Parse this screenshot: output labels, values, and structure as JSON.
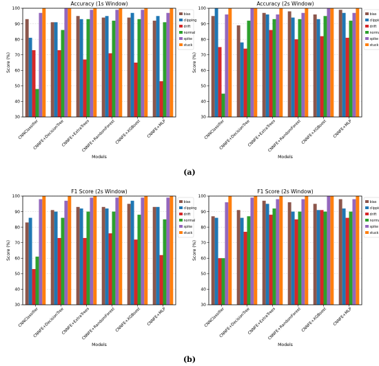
{
  "figure": {
    "captions": [
      "(a)",
      "(b)"
    ]
  },
  "colors": {
    "bias": "#8c564b",
    "clipping": "#1f77b4",
    "drift": "#d62728",
    "normal": "#2ca02c",
    "spike": "#9467bd",
    "stuck": "#ff7f0e"
  },
  "chart_data": [
    {
      "type": "bar",
      "title": "Accuracy (1s Window)",
      "xlabel": "Models",
      "ylabel": "Score (%)",
      "ylim": [
        30,
        100
      ],
      "yticks": [
        30,
        40,
        50,
        60,
        70,
        80,
        90,
        100
      ],
      "grid": true,
      "legend": "top-right (outside)",
      "categories": [
        "CNNClassifier",
        "CNNFE+DecisionTree",
        "CNNFE+ExtraTrees",
        "CNNFE+RandomForest",
        "CNNFE+XGBoost",
        "CNNFE+MLP"
      ],
      "series": [
        {
          "name": "bias",
          "values": [
            93,
            91,
            95,
            94,
            94,
            92
          ]
        },
        {
          "name": "clipping",
          "values": [
            81,
            91,
            93,
            95,
            97,
            95
          ]
        },
        {
          "name": "drift",
          "values": [
            73,
            73,
            67,
            71,
            65,
            53
          ]
        },
        {
          "name": "normal",
          "values": [
            48,
            86,
            93,
            92,
            93,
            91
          ]
        },
        {
          "name": "spike",
          "values": [
            97,
            100,
            99,
            99,
            99,
            97
          ]
        },
        {
          "name": "stuck",
          "values": [
            100,
            100,
            100,
            100,
            100,
            100
          ]
        }
      ]
    },
    {
      "type": "bar",
      "title": "Accuracy (2s Window)",
      "xlabel": "Models",
      "ylabel": "Score (%)",
      "ylim": [
        30,
        100
      ],
      "yticks": [
        30,
        40,
        50,
        60,
        70,
        80,
        90,
        100
      ],
      "grid": true,
      "legend": "top-right (outside)",
      "categories": [
        "CNNClassifier",
        "CNNFE+DecisionTree",
        "CNNFE+ExtraTrees",
        "CNNFE+RandomForest",
        "CNNFE+XGBoost",
        "CNNFE+MLP"
      ],
      "series": [
        {
          "name": "bias",
          "values": [
            95,
            89,
            97,
            98,
            96,
            99
          ]
        },
        {
          "name": "clipping",
          "values": [
            100,
            78,
            96,
            94,
            93,
            97
          ]
        },
        {
          "name": "drift",
          "values": [
            75,
            74,
            86,
            80,
            82,
            81
          ]
        },
        {
          "name": "normal",
          "values": [
            45,
            92,
            93,
            93,
            95,
            92
          ]
        },
        {
          "name": "spike",
          "values": [
            96,
            100,
            96,
            97,
            100,
            97
          ]
        },
        {
          "name": "stuck",
          "values": [
            100,
            100,
            100,
            100,
            100,
            100
          ]
        }
      ]
    },
    {
      "type": "bar",
      "title": "F1 Score (2s Window)",
      "xlabel": "Models",
      "ylabel": "Score (%)",
      "ylim": [
        30,
        100
      ],
      "yticks": [
        30,
        40,
        50,
        60,
        70,
        80,
        90,
        100
      ],
      "grid": true,
      "legend": "top-right (outside)",
      "categories": [
        "CNNClassifier",
        "CNNFE+DecisionTree",
        "CNNFE+ExtraTrees",
        "CNNFE+RandomForest",
        "CNNFE+XGBoost",
        "CNNFE+MLP"
      ],
      "series": [
        {
          "name": "bias",
          "values": [
            83,
            91,
            93,
            93,
            95,
            93
          ]
        },
        {
          "name": "clipping",
          "values": [
            86,
            90,
            92,
            92,
            97,
            93
          ]
        },
        {
          "name": "drift",
          "values": [
            53,
            73,
            73,
            76,
            72,
            62
          ]
        },
        {
          "name": "normal",
          "values": [
            61,
            86,
            90,
            90,
            88,
            85
          ]
        },
        {
          "name": "spike",
          "values": [
            98,
            97,
            99,
            99,
            99,
            99
          ]
        },
        {
          "name": "stuck",
          "values": [
            100,
            100,
            100,
            100,
            100,
            100
          ]
        }
      ]
    },
    {
      "type": "bar",
      "title": "F1 Score (2s Window)",
      "xlabel": "Models",
      "ylabel": "Score (%)",
      "ylim": [
        30,
        100
      ],
      "yticks": [
        30,
        40,
        50,
        60,
        70,
        80,
        90,
        100
      ],
      "grid": true,
      "legend": "top-right (outside)",
      "categories": [
        "CNNClassifier",
        "CNNFE+DecisionTree",
        "CNNFE+ExtraTrees",
        "CNNFE+RandomForest",
        "CNNFE+XGBoost",
        "CNNFE+MLP"
      ],
      "series": [
        {
          "name": "bias",
          "values": [
            87,
            91,
            97,
            96,
            95,
            98
          ]
        },
        {
          "name": "clipping",
          "values": [
            86,
            86,
            95,
            90,
            91,
            92
          ]
        },
        {
          "name": "drift",
          "values": [
            60,
            77,
            88,
            85,
            91,
            86
          ]
        },
        {
          "name": "normal",
          "values": [
            60,
            87,
            92,
            90,
            90,
            90
          ]
        },
        {
          "name": "spike",
          "values": [
            96,
            99,
            98,
            98,
            100,
            98
          ]
        },
        {
          "name": "stuck",
          "values": [
            100,
            100,
            100,
            100,
            100,
            100
          ]
        }
      ]
    }
  ]
}
